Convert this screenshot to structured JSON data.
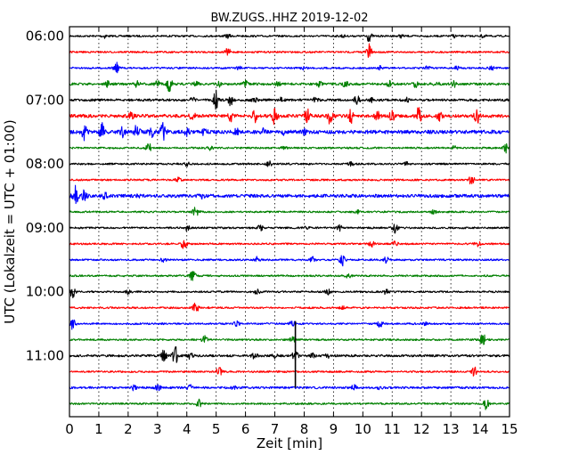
{
  "chart_data": {
    "type": "line",
    "title": "BW.ZUGS..HHZ 2019-12-02",
    "xlabel": "Zeit  [min]",
    "ylabel": "UTC (Lokalzeit = UTC + 01:00)",
    "xlim": [
      0,
      15
    ],
    "x_ticks": [
      0,
      1,
      2,
      3,
      4,
      5,
      6,
      7,
      8,
      9,
      10,
      11,
      12,
      13,
      14,
      15
    ],
    "y_tick_labels": [
      "06:00",
      "07:00",
      "08:00",
      "09:00",
      "10:00",
      "11:00"
    ],
    "grid": "vertical dotted lines at each minute",
    "trace_colors": [
      "#000000",
      "#ff0000",
      "#0000ff",
      "#008000"
    ],
    "series": [
      {
        "start": "06:00",
        "noise": 1.0,
        "events": [
          [
            1.2,
            2
          ],
          [
            5.4,
            2
          ],
          [
            9.3,
            1.5
          ],
          [
            10.2,
            6
          ],
          [
            11.3,
            1.5
          ],
          [
            13.1,
            1.5
          ],
          [
            14.1,
            1.5
          ]
        ]
      },
      {
        "start": "06:15",
        "noise": 1.0,
        "events": [
          [
            5.4,
            4
          ],
          [
            10.2,
            9
          ]
        ]
      },
      {
        "start": "06:30",
        "noise": 1.0,
        "events": [
          [
            1.6,
            6
          ],
          [
            5.8,
            2
          ],
          [
            8.0,
            2
          ],
          [
            10.6,
            2
          ],
          [
            12.2,
            2
          ],
          [
            13.2,
            3
          ],
          [
            14.4,
            2
          ]
        ]
      },
      {
        "start": "06:45",
        "noise": 1.3,
        "events": [
          [
            1.3,
            3
          ],
          [
            2.3,
            3
          ],
          [
            3.0,
            3
          ],
          [
            3.4,
            8
          ],
          [
            4.3,
            3
          ],
          [
            5.1,
            3
          ],
          [
            6.0,
            3
          ],
          [
            7.1,
            2
          ],
          [
            8.5,
            3
          ],
          [
            9.4,
            3
          ],
          [
            10.9,
            3
          ],
          [
            11.8,
            3
          ],
          [
            12.5,
            3
          ],
          [
            13.1,
            3
          ]
        ]
      },
      {
        "start": "07:00",
        "noise": 1.3,
        "events": [
          [
            4.2,
            2
          ],
          [
            5.0,
            10
          ],
          [
            5.5,
            6
          ],
          [
            6.3,
            3
          ],
          [
            7.2,
            2
          ],
          [
            8.4,
            3
          ],
          [
            9.8,
            5
          ],
          [
            10.3,
            2
          ],
          [
            11.5,
            2
          ]
        ]
      },
      {
        "start": "07:15",
        "noise": 1.8,
        "events": [
          [
            2.1,
            3
          ],
          [
            4.2,
            5
          ],
          [
            5.5,
            5
          ],
          [
            6.3,
            7
          ],
          [
            7.0,
            9
          ],
          [
            8.1,
            8
          ],
          [
            8.9,
            10
          ],
          [
            9.6,
            7
          ],
          [
            10.5,
            5
          ],
          [
            11.0,
            5
          ],
          [
            11.9,
            9
          ],
          [
            12.6,
            5
          ],
          [
            13.9,
            8
          ]
        ]
      },
      {
        "start": "07:30",
        "noise": 2.0,
        "events": [
          [
            0.5,
            8
          ],
          [
            1.1,
            9
          ],
          [
            1.8,
            5
          ],
          [
            2.3,
            8
          ],
          [
            2.8,
            5
          ],
          [
            3.2,
            10
          ],
          [
            4.0,
            4
          ],
          [
            4.6,
            3
          ],
          [
            5.7,
            3
          ],
          [
            6.6,
            3
          ],
          [
            7.3,
            2
          ],
          [
            8.0,
            3
          ]
        ]
      },
      {
        "start": "07:45",
        "noise": 1.0,
        "events": [
          [
            2.7,
            5
          ],
          [
            4.8,
            2
          ],
          [
            7.3,
            2
          ],
          [
            13.1,
            2
          ],
          [
            14.9,
            5
          ]
        ]
      },
      {
        "start": "08:00",
        "noise": 1.0,
        "events": [
          [
            4.0,
            2
          ],
          [
            6.8,
            3
          ],
          [
            9.6,
            2
          ],
          [
            11.5,
            2
          ]
        ]
      },
      {
        "start": "08:15",
        "noise": 1.0,
        "events": [
          [
            3.7,
            3
          ],
          [
            13.7,
            5
          ]
        ]
      },
      {
        "start": "08:30",
        "noise": 1.8,
        "events": [
          [
            0.2,
            10
          ],
          [
            0.5,
            6
          ],
          [
            1.2,
            3
          ],
          [
            2.4,
            2
          ],
          [
            4.5,
            2
          ]
        ]
      },
      {
        "start": "08:45",
        "noise": 1.0,
        "events": [
          [
            4.3,
            6
          ],
          [
            9.8,
            2
          ],
          [
            12.4,
            2
          ]
        ]
      },
      {
        "start": "09:00",
        "noise": 1.0,
        "events": [
          [
            4.0,
            3
          ],
          [
            6.5,
            3
          ],
          [
            8.1,
            2
          ],
          [
            9.2,
            3
          ],
          [
            11.1,
            5
          ]
        ]
      },
      {
        "start": "09:15",
        "noise": 1.0,
        "events": [
          [
            3.9,
            6
          ],
          [
            10.3,
            3
          ],
          [
            11.1,
            3
          ],
          [
            13.9,
            4
          ]
        ]
      },
      {
        "start": "09:30",
        "noise": 1.0,
        "events": [
          [
            3.2,
            2
          ],
          [
            6.4,
            3
          ],
          [
            8.3,
            3
          ],
          [
            9.3,
            7
          ],
          [
            10.8,
            3
          ]
        ]
      },
      {
        "start": "09:45",
        "noise": 1.0,
        "events": [
          [
            4.2,
            6
          ],
          [
            9.5,
            2
          ]
        ]
      },
      {
        "start": "10:00",
        "noise": 1.0,
        "events": [
          [
            0.1,
            6
          ],
          [
            2.0,
            2
          ],
          [
            6.4,
            3
          ],
          [
            8.8,
            3
          ],
          [
            10.8,
            3
          ]
        ]
      },
      {
        "start": "10:15",
        "noise": 1.0,
        "events": [
          [
            4.3,
            6
          ],
          [
            9.3,
            2
          ]
        ]
      },
      {
        "start": "10:30",
        "noise": 1.0,
        "events": [
          [
            0.1,
            6
          ],
          [
            5.7,
            3
          ],
          [
            7.6,
            3
          ],
          [
            10.6,
            4
          ],
          [
            12.1,
            2
          ]
        ]
      },
      {
        "start": "10:45",
        "noise": 1.0,
        "events": [
          [
            4.6,
            5
          ],
          [
            7.6,
            3
          ],
          [
            14.1,
            6
          ]
        ]
      },
      {
        "start": "11:00",
        "noise": 1.3,
        "events": [
          [
            3.2,
            8
          ],
          [
            3.6,
            10
          ],
          [
            4.1,
            4
          ],
          [
            6.3,
            3
          ],
          [
            7.0,
            2
          ],
          [
            7.7,
            7
          ],
          [
            8.3,
            2
          ],
          [
            8.8,
            2
          ]
        ]
      },
      {
        "start": "11:15",
        "noise": 1.0,
        "events": [
          [
            5.1,
            5
          ],
          [
            13.8,
            5
          ]
        ]
      },
      {
        "start": "11:30",
        "noise": 1.2,
        "events": [
          [
            2.2,
            3
          ],
          [
            3.0,
            3
          ],
          [
            4.1,
            3
          ],
          [
            5.6,
            2
          ],
          [
            9.7,
            3
          ],
          [
            10.6,
            2
          ]
        ]
      },
      {
        "start": "11:45",
        "noise": 1.0,
        "events": [
          [
            4.4,
            5
          ],
          [
            14.2,
            6
          ]
        ]
      }
    ],
    "spike": {
      "x": 7.7,
      "from_trace": 18,
      "to_trace": 22
    }
  }
}
